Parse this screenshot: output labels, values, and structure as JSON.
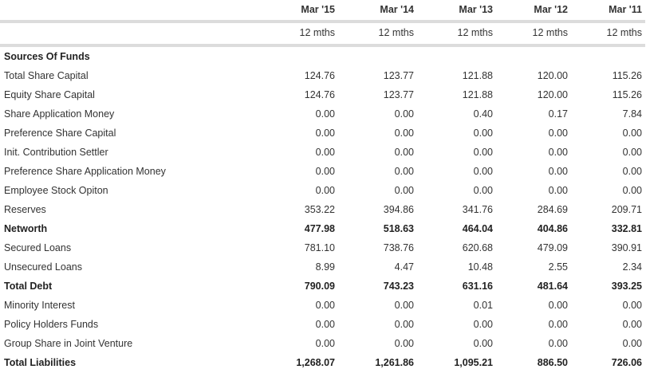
{
  "columns": [
    "Mar '15",
    "Mar '14",
    "Mar '13",
    "Mar '12",
    "Mar '11"
  ],
  "periods": [
    "12 mths",
    "12 mths",
    "12 mths",
    "12 mths",
    "12 mths"
  ],
  "section_title": "Sources Of Funds",
  "rows": [
    {
      "label": "Total Share Capital",
      "bold": false,
      "values": [
        "124.76",
        "123.77",
        "121.88",
        "120.00",
        "115.26"
      ]
    },
    {
      "label": "Equity Share Capital",
      "bold": false,
      "values": [
        "124.76",
        "123.77",
        "121.88",
        "120.00",
        "115.26"
      ]
    },
    {
      "label": "Share Application Money",
      "bold": false,
      "values": [
        "0.00",
        "0.00",
        "0.40",
        "0.17",
        "7.84"
      ]
    },
    {
      "label": "Preference Share Capital",
      "bold": false,
      "values": [
        "0.00",
        "0.00",
        "0.00",
        "0.00",
        "0.00"
      ]
    },
    {
      "label": "Init. Contribution Settler",
      "bold": false,
      "values": [
        "0.00",
        "0.00",
        "0.00",
        "0.00",
        "0.00"
      ]
    },
    {
      "label": "Preference Share Application Money",
      "bold": false,
      "values": [
        "0.00",
        "0.00",
        "0.00",
        "0.00",
        "0.00"
      ]
    },
    {
      "label": "Employee Stock Opiton",
      "bold": false,
      "values": [
        "0.00",
        "0.00",
        "0.00",
        "0.00",
        "0.00"
      ]
    },
    {
      "label": "Reserves",
      "bold": false,
      "values": [
        "353.22",
        "394.86",
        "341.76",
        "284.69",
        "209.71"
      ]
    },
    {
      "label": "Networth",
      "bold": true,
      "values": [
        "477.98",
        "518.63",
        "464.04",
        "404.86",
        "332.81"
      ]
    },
    {
      "label": "Secured Loans",
      "bold": false,
      "values": [
        "781.10",
        "738.76",
        "620.68",
        "479.09",
        "390.91"
      ]
    },
    {
      "label": "Unsecured Loans",
      "bold": false,
      "values": [
        "8.99",
        "4.47",
        "10.48",
        "2.55",
        "2.34"
      ]
    },
    {
      "label": "Total Debt",
      "bold": true,
      "values": [
        "790.09",
        "743.23",
        "631.16",
        "481.64",
        "393.25"
      ]
    },
    {
      "label": "Minority Interest",
      "bold": false,
      "values": [
        "0.00",
        "0.00",
        "0.01",
        "0.00",
        "0.00"
      ]
    },
    {
      "label": "Policy Holders Funds",
      "bold": false,
      "values": [
        "0.00",
        "0.00",
        "0.00",
        "0.00",
        "0.00"
      ]
    },
    {
      "label": "Group Share in Joint Venture",
      "bold": false,
      "values": [
        "0.00",
        "0.00",
        "0.00",
        "0.00",
        "0.00"
      ]
    },
    {
      "label": "Total Liabilities",
      "bold": true,
      "values": [
        "1,268.07",
        "1,261.86",
        "1,095.21",
        "886.50",
        "726.06"
      ]
    }
  ]
}
